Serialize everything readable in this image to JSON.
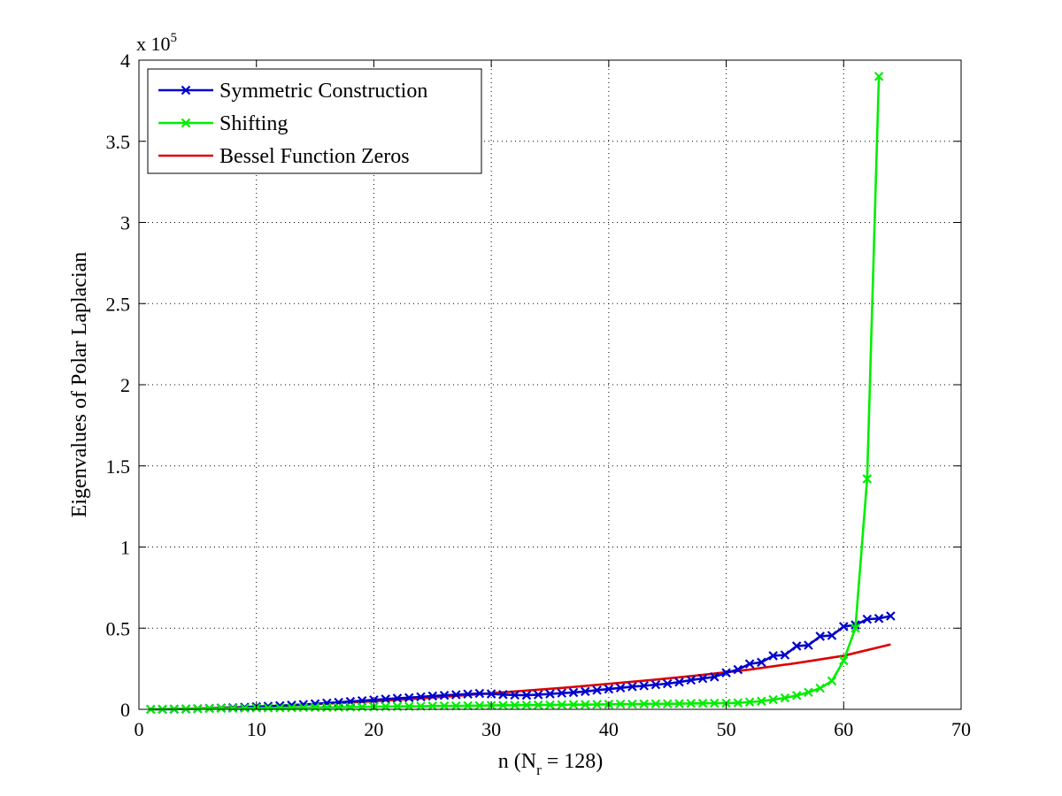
{
  "chart_data": {
    "type": "line",
    "title": "",
    "xlabel": "n (N",
    "xlabel_sub": "r",
    "xlabel_tail": " = 128)",
    "ylabel": "Eigenvalues of Polar Laplacian",
    "y_exponent_base": "x 10",
    "y_exponent_power": "5",
    "xlim": [
      0,
      70
    ],
    "ylim": [
      0,
      4
    ],
    "xticks": [
      0,
      10,
      20,
      30,
      40,
      50,
      60,
      70
    ],
    "yticks": [
      0,
      0.5,
      1,
      1.5,
      2,
      2.5,
      3,
      3.5,
      4
    ],
    "ytick_labels": [
      "0",
      "0.5",
      "1",
      "1.5",
      "2",
      "2.5",
      "3",
      "3.5",
      "4"
    ],
    "grid": true,
    "legend_position": "top-left",
    "series": [
      {
        "name": "Symmetric Construction",
        "color": "#0000cc",
        "marker": "x",
        "x": [
          1,
          2,
          3,
          4,
          5,
          6,
          7,
          8,
          9,
          10,
          11,
          12,
          13,
          14,
          15,
          16,
          17,
          18,
          19,
          20,
          21,
          22,
          23,
          24,
          25,
          26,
          27,
          28,
          29,
          30,
          31,
          32,
          33,
          34,
          35,
          36,
          37,
          38,
          39,
          40,
          41,
          42,
          43,
          44,
          45,
          46,
          47,
          48,
          49,
          50,
          51,
          52,
          53,
          54,
          55,
          56,
          57,
          58,
          59,
          60,
          61,
          62,
          63,
          64
        ],
        "y": [
          0.0,
          0.0,
          0.001,
          0.002,
          0.004,
          0.006,
          0.008,
          0.01,
          0.013,
          0.016,
          0.019,
          0.022,
          0.026,
          0.03,
          0.034,
          0.039,
          0.043,
          0.048,
          0.053,
          0.058,
          0.063,
          0.068,
          0.072,
          0.077,
          0.082,
          0.086,
          0.09,
          0.094,
          0.098,
          0.095,
          0.091,
          0.088,
          0.087,
          0.09,
          0.095,
          0.1,
          0.104,
          0.11,
          0.118,
          0.125,
          0.132,
          0.14,
          0.145,
          0.152,
          0.158,
          0.168,
          0.18,
          0.19,
          0.2,
          0.225,
          0.245,
          0.28,
          0.29,
          0.33,
          0.335,
          0.39,
          0.395,
          0.45,
          0.455,
          0.51,
          0.52,
          0.555,
          0.56,
          0.575
        ]
      },
      {
        "name": "Shifting",
        "color": "#00ee00",
        "marker": "x",
        "x": [
          1,
          2,
          3,
          4,
          5,
          6,
          7,
          8,
          9,
          10,
          11,
          12,
          13,
          14,
          15,
          16,
          17,
          18,
          19,
          20,
          21,
          22,
          23,
          24,
          25,
          26,
          27,
          28,
          29,
          30,
          31,
          32,
          33,
          34,
          35,
          36,
          37,
          38,
          39,
          40,
          41,
          42,
          43,
          44,
          45,
          46,
          47,
          48,
          49,
          50,
          51,
          52,
          53,
          54,
          55,
          56,
          57,
          58,
          59,
          60,
          61,
          62,
          63
        ],
        "y": [
          0.0,
          0.001,
          0.002,
          0.003,
          0.004,
          0.005,
          0.006,
          0.006,
          0.007,
          0.008,
          0.008,
          0.009,
          0.01,
          0.011,
          0.012,
          0.012,
          0.013,
          0.014,
          0.015,
          0.016,
          0.017,
          0.018,
          0.018,
          0.019,
          0.02,
          0.021,
          0.021,
          0.022,
          0.023,
          0.024,
          0.025,
          0.025,
          0.026,
          0.027,
          0.027,
          0.028,
          0.029,
          0.029,
          0.03,
          0.031,
          0.032,
          0.032,
          0.033,
          0.034,
          0.034,
          0.035,
          0.036,
          0.037,
          0.038,
          0.038,
          0.04,
          0.045,
          0.05,
          0.06,
          0.07,
          0.085,
          0.105,
          0.13,
          0.175,
          0.3,
          0.5,
          1.42,
          3.9
        ]
      },
      {
        "name": "Bessel Function Zeros",
        "color": "#dd0000",
        "marker": "none",
        "x": [
          1,
          4,
          8,
          12,
          16,
          20,
          24,
          28,
          32,
          36,
          40,
          44,
          48,
          52,
          56,
          60,
          64
        ],
        "y": [
          0.0,
          0.004,
          0.012,
          0.022,
          0.035,
          0.05,
          0.068,
          0.088,
          0.11,
          0.132,
          0.157,
          0.183,
          0.212,
          0.245,
          0.285,
          0.33,
          0.4
        ]
      }
    ]
  }
}
